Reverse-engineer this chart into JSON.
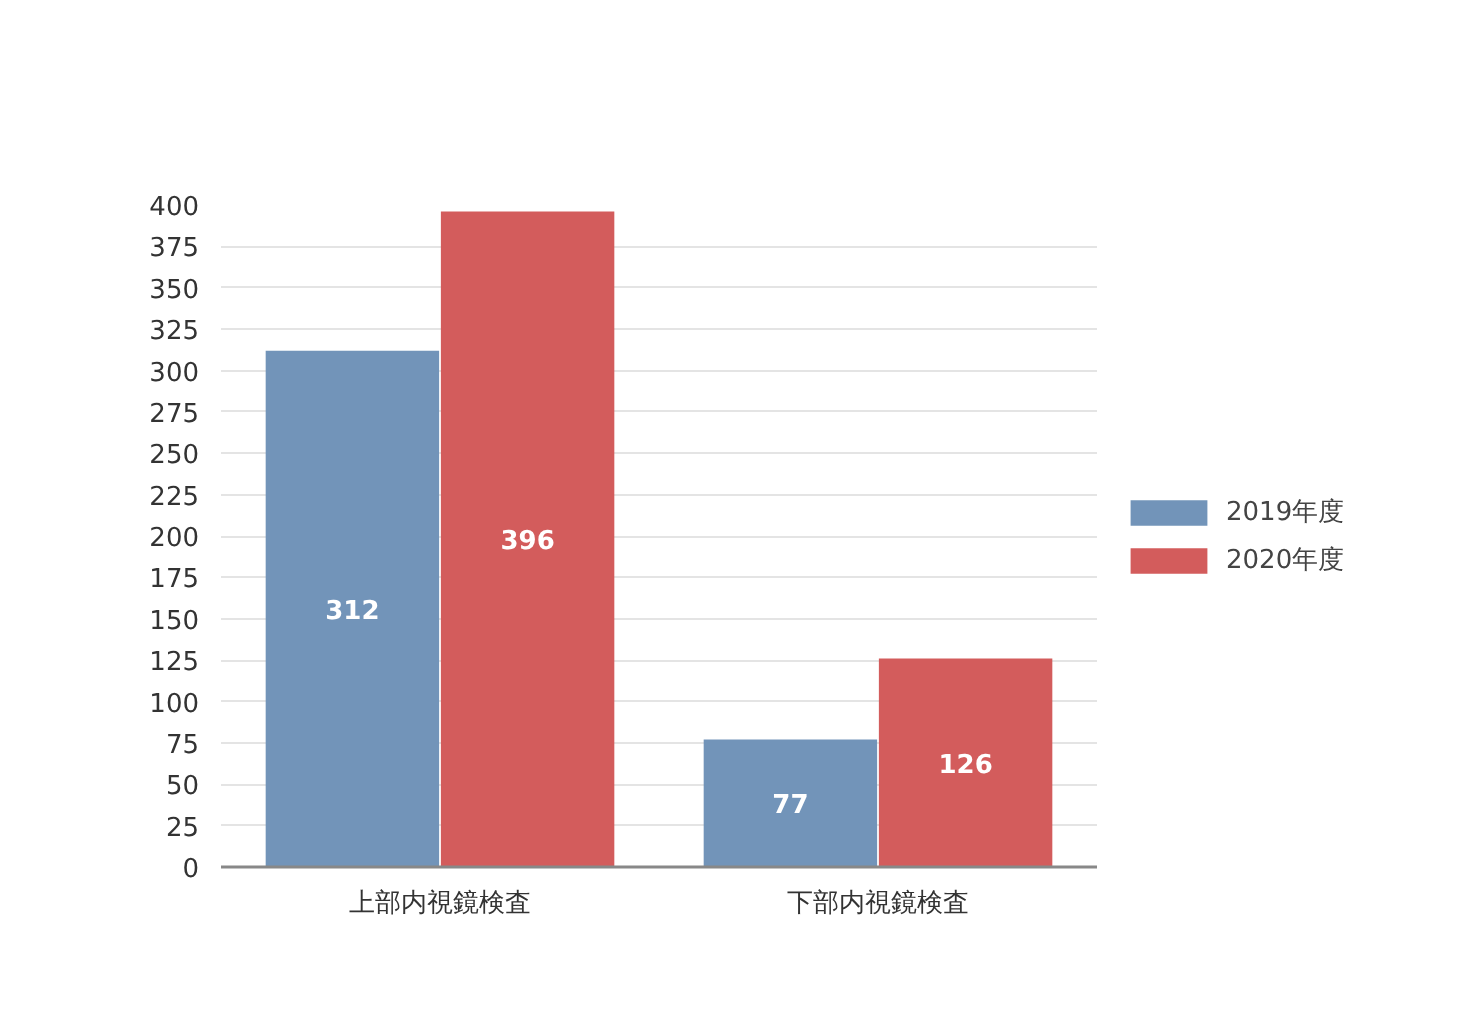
{
  "chart_data": {
    "type": "bar",
    "categories": [
      "上部内視鏡検査",
      "下部内視鏡検査"
    ],
    "series": [
      {
        "name": "2019年度",
        "color": "#7294b9",
        "values": [
          312,
          77
        ]
      },
      {
        "name": "2020年度",
        "color": "#d35c5c",
        "values": [
          396,
          126
        ]
      }
    ],
    "ylim": [
      0,
      400
    ],
    "yticks": [
      0,
      25,
      50,
      75,
      100,
      125,
      150,
      175,
      200,
      225,
      250,
      275,
      300,
      325,
      350,
      375,
      400
    ],
    "grid": "y",
    "legend": "right",
    "data_labels": true
  }
}
